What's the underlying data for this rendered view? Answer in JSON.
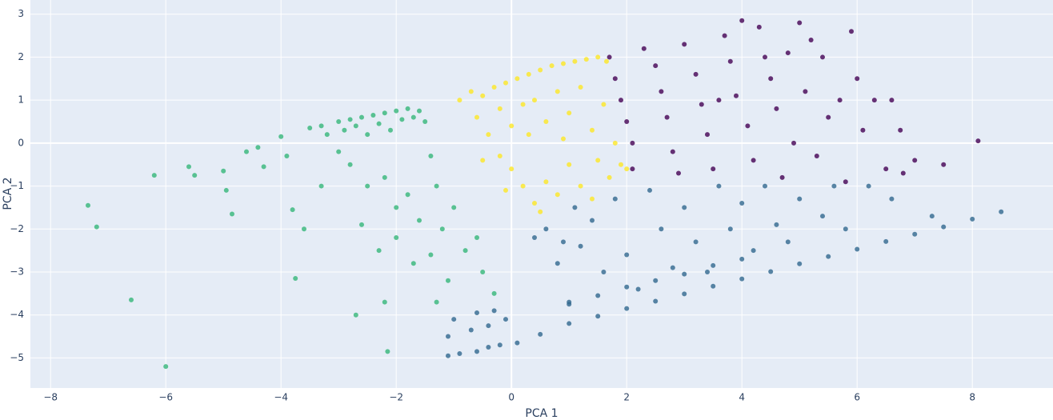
{
  "chart_data": {
    "type": "scatter",
    "x_label": "PCA 1",
    "y_label": "PCA 2",
    "xlim": [
      -8.35,
      9.4
    ],
    "ylim": [
      -5.7,
      3.33
    ],
    "xticks": [
      {
        "value": -8,
        "label": "−8"
      },
      {
        "value": -6,
        "label": "−6"
      },
      {
        "value": -4,
        "label": "−4"
      },
      {
        "value": -2,
        "label": "−2"
      },
      0,
      2,
      4,
      6,
      8
    ],
    "yticks": [
      {
        "value": -5,
        "label": "−5"
      },
      {
        "value": -4,
        "label": "−4"
      },
      {
        "value": -3,
        "label": "−3"
      },
      {
        "value": -2,
        "label": "−2"
      },
      {
        "value": -1,
        "label": "−1"
      },
      0,
      1,
      2,
      3
    ],
    "grid": true,
    "series": [
      {
        "color": "#35b779",
        "x": [
          -7.35,
          -7.2,
          -6.6,
          -6.0,
          -6.2,
          -5.6,
          -5.5,
          -5.0,
          -4.95,
          -4.85,
          -4.6,
          -4.4,
          -4.3,
          -4.0,
          -3.9,
          -3.8,
          -3.6,
          -3.75,
          -3.5,
          -3.3,
          -3.2,
          -3.0,
          -2.9,
          -2.8,
          -2.7,
          -2.6,
          -2.5,
          -2.4,
          -2.3,
          -2.2,
          -2.1,
          -2.0,
          -1.9,
          -1.8,
          -1.7,
          -1.6,
          -1.5,
          -2.8,
          -2.5,
          -2.2,
          -2.0,
          -1.8,
          -1.6,
          -1.4,
          -1.3,
          -1.2,
          -1.0,
          -2.6,
          -2.3,
          -2.0,
          -1.7,
          -1.4,
          -1.1,
          -0.8,
          -0.5,
          -0.3,
          -2.2,
          -2.7,
          -2.15,
          -1.3,
          -0.6,
          -3.0,
          -3.3
        ],
        "y": [
          -1.45,
          -1.95,
          -3.65,
          -5.2,
          -0.75,
          -0.55,
          -0.75,
          -0.65,
          -1.1,
          -1.65,
          -0.2,
          -0.1,
          -0.55,
          0.15,
          -0.3,
          -1.55,
          -2.0,
          -3.15,
          0.35,
          0.4,
          0.2,
          0.5,
          0.3,
          0.55,
          0.4,
          0.6,
          0.2,
          0.65,
          0.45,
          0.7,
          0.3,
          0.75,
          0.55,
          0.8,
          0.6,
          0.75,
          0.5,
          -0.5,
          -1.0,
          -0.8,
          -1.5,
          -1.2,
          -1.8,
          -0.3,
          -1.0,
          -2.0,
          -1.5,
          -1.9,
          -2.5,
          -2.2,
          -2.8,
          -2.6,
          -3.2,
          -2.5,
          -3.0,
          -3.5,
          -3.7,
          -4.0,
          -4.85,
          -3.7,
          -2.2,
          -0.2,
          -1.0
        ]
      },
      {
        "color": "#fde725",
        "x": [
          -0.9,
          -0.7,
          -0.5,
          -0.3,
          -0.1,
          0.1,
          0.3,
          0.5,
          0.7,
          0.9,
          1.1,
          1.3,
          1.5,
          1.65,
          -0.6,
          -0.4,
          -0.2,
          0.0,
          0.2,
          0.4,
          0.6,
          0.8,
          1.0,
          1.2,
          1.4,
          1.6,
          1.8,
          1.9,
          2.0,
          1.7,
          1.5,
          1.2,
          1.0,
          0.8,
          0.6,
          0.4,
          0.2,
          0.0,
          -0.2,
          -0.1,
          0.5,
          1.4,
          -0.5,
          0.9,
          0.3
        ],
        "y": [
          1.0,
          1.2,
          1.1,
          1.3,
          1.4,
          1.5,
          1.6,
          1.7,
          1.8,
          1.85,
          1.9,
          1.95,
          2.0,
          1.9,
          0.6,
          0.2,
          0.8,
          0.4,
          0.9,
          1.0,
          0.5,
          1.2,
          0.7,
          1.3,
          0.3,
          0.9,
          0.0,
          -0.5,
          -0.6,
          -0.8,
          -0.4,
          -1.0,
          -0.5,
          -1.2,
          -0.9,
          -1.4,
          -1.0,
          -0.6,
          -0.3,
          -1.1,
          -1.6,
          -1.3,
          -0.4,
          0.1,
          0.2
        ]
      },
      {
        "color": "#440154",
        "x": [
          1.7,
          1.8,
          1.9,
          2.0,
          2.1,
          2.1,
          2.3,
          2.5,
          2.6,
          2.7,
          2.8,
          2.9,
          3.0,
          3.2,
          3.3,
          3.4,
          3.5,
          3.7,
          3.8,
          3.9,
          4.0,
          4.1,
          4.2,
          4.3,
          4.5,
          4.6,
          4.7,
          4.8,
          4.9,
          5.0,
          5.1,
          5.3,
          5.4,
          5.5,
          5.7,
          5.8,
          5.9,
          6.0,
          6.1,
          6.3,
          6.5,
          6.6,
          6.8,
          6.75,
          7.5,
          8.1,
          7.0,
          5.2,
          4.4,
          3.6
        ],
        "y": [
          2.0,
          1.5,
          1.0,
          0.5,
          0.0,
          -0.6,
          2.2,
          1.8,
          1.2,
          0.6,
          -0.2,
          -0.7,
          2.3,
          1.6,
          0.9,
          0.2,
          -0.6,
          2.5,
          1.9,
          1.1,
          2.85,
          0.4,
          -0.4,
          2.7,
          1.5,
          0.8,
          -0.8,
          2.1,
          0.0,
          2.8,
          1.2,
          -0.3,
          2.0,
          0.6,
          1.0,
          -0.9,
          2.6,
          1.5,
          0.3,
          1.0,
          -0.6,
          1.0,
          -0.7,
          0.3,
          -0.5,
          0.05,
          -0.4,
          2.4,
          2.0,
          1.0
        ]
      },
      {
        "color": "#31688e",
        "x": [
          1.0,
          1.5,
          2.0,
          2.5,
          3.0,
          3.5,
          4.0,
          4.5,
          5.0,
          5.5,
          6.0,
          6.5,
          7.0,
          7.5,
          8.0,
          8.5,
          1.0,
          1.5,
          2.0,
          2.5,
          3.0,
          3.5,
          4.0,
          -1.1,
          -0.9,
          -0.6,
          -0.4,
          -0.2,
          0.1,
          0.5,
          -1.1,
          -0.7,
          -0.4,
          -0.1,
          -1.0,
          -0.6,
          -0.3,
          0.4,
          0.6,
          0.8,
          1.0,
          1.2,
          1.4,
          1.6,
          1.8,
          2.0,
          2.2,
          2.4,
          2.6,
          2.8,
          3.0,
          3.2,
          3.4,
          3.6,
          3.8,
          4.0,
          4.2,
          4.4,
          4.6,
          4.8,
          5.0,
          5.4,
          5.8,
          6.2,
          6.6,
          7.3,
          5.6,
          1.1,
          0.9
        ],
        "y": [
          -4.2,
          -4.03,
          -3.85,
          -3.68,
          -3.51,
          -3.33,
          -3.16,
          -2.99,
          -2.81,
          -2.64,
          -2.47,
          -2.29,
          -2.12,
          -1.95,
          -1.77,
          -1.6,
          -3.75,
          -3.55,
          -3.35,
          -3.2,
          -3.05,
          -2.85,
          -2.7,
          -4.95,
          -4.9,
          -4.85,
          -4.75,
          -4.7,
          -4.65,
          -4.45,
          -4.5,
          -4.35,
          -4.25,
          -4.1,
          -4.1,
          -3.95,
          -3.9,
          -2.2,
          -2.0,
          -2.8,
          -3.7,
          -2.4,
          -1.8,
          -3.0,
          -1.3,
          -2.6,
          -3.4,
          -1.1,
          -2.0,
          -2.9,
          -1.5,
          -2.3,
          -3.0,
          -1.0,
          -2.0,
          -1.4,
          -2.5,
          -1.0,
          -1.9,
          -2.3,
          -1.3,
          -1.7,
          -2.0,
          -1.0,
          -1.3,
          -1.7,
          -1.0,
          -1.5,
          -2.3
        ]
      }
    ]
  }
}
